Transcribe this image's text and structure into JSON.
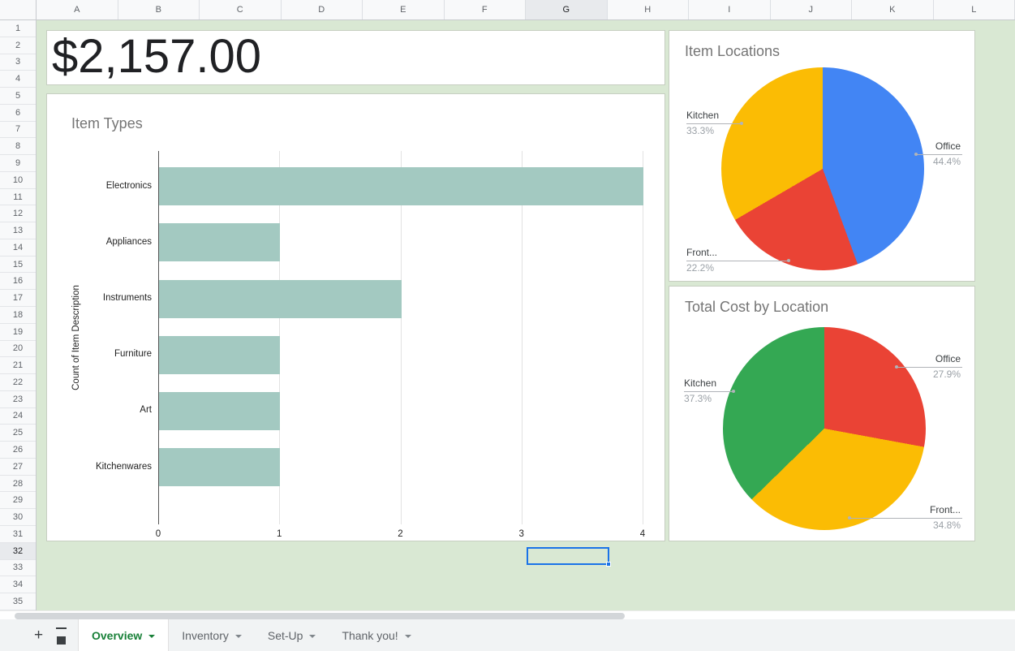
{
  "spreadsheet": {
    "columns": [
      "A",
      "B",
      "C",
      "D",
      "E",
      "F",
      "G",
      "H",
      "I",
      "J",
      "K",
      "L"
    ],
    "row_count": 35,
    "selected_column": "G",
    "selected_row": "32",
    "selected_cell": "G32",
    "sheet_background": "#d9e8d3",
    "selection_color": "#1a73e8"
  },
  "summary_card": {
    "value": "$2,157.00"
  },
  "chart_data": [
    {
      "type": "bar",
      "orientation": "horizontal",
      "title": "Item Types",
      "categories": [
        "Electronics",
        "Appliances",
        "Instruments",
        "Furniture",
        "Art",
        "Kitchenwares"
      ],
      "values": [
        4,
        1,
        2,
        1,
        1,
        1
      ],
      "xlabel": "",
      "ylabel": "Count of Item Description",
      "xlim": [
        0,
        4
      ],
      "xticks": [
        0,
        1,
        2,
        3,
        4
      ],
      "bar_color": "#a3c9c1",
      "grid": true,
      "legend": "none"
    },
    {
      "type": "pie",
      "title": "Item Locations",
      "slices": [
        {
          "label": "Office",
          "pct": "44.4%",
          "value": 44.4,
          "color": "#4285f4"
        },
        {
          "label": "Front...",
          "pct": "22.2%",
          "value": 22.2,
          "color": "#ea4335"
        },
        {
          "label": "Kitchen",
          "pct": "33.3%",
          "value": 33.3,
          "color": "#fbbc04"
        }
      ]
    },
    {
      "type": "pie",
      "title": "Total Cost by Location",
      "slices": [
        {
          "label": "Office",
          "pct": "27.9%",
          "value": 27.9,
          "color": "#ea4335"
        },
        {
          "label": "Front...",
          "pct": "34.8%",
          "value": 34.8,
          "color": "#fbbc04"
        },
        {
          "label": "Kitchen",
          "pct": "37.3%",
          "value": 37.3,
          "color": "#34a853"
        }
      ]
    }
  ],
  "sheet_tabs": {
    "tabs": [
      {
        "label": "Overview",
        "active": true
      },
      {
        "label": "Inventory",
        "active": false
      },
      {
        "label": "Set-Up",
        "active": false
      },
      {
        "label": "Thank you!",
        "active": false
      }
    ]
  }
}
